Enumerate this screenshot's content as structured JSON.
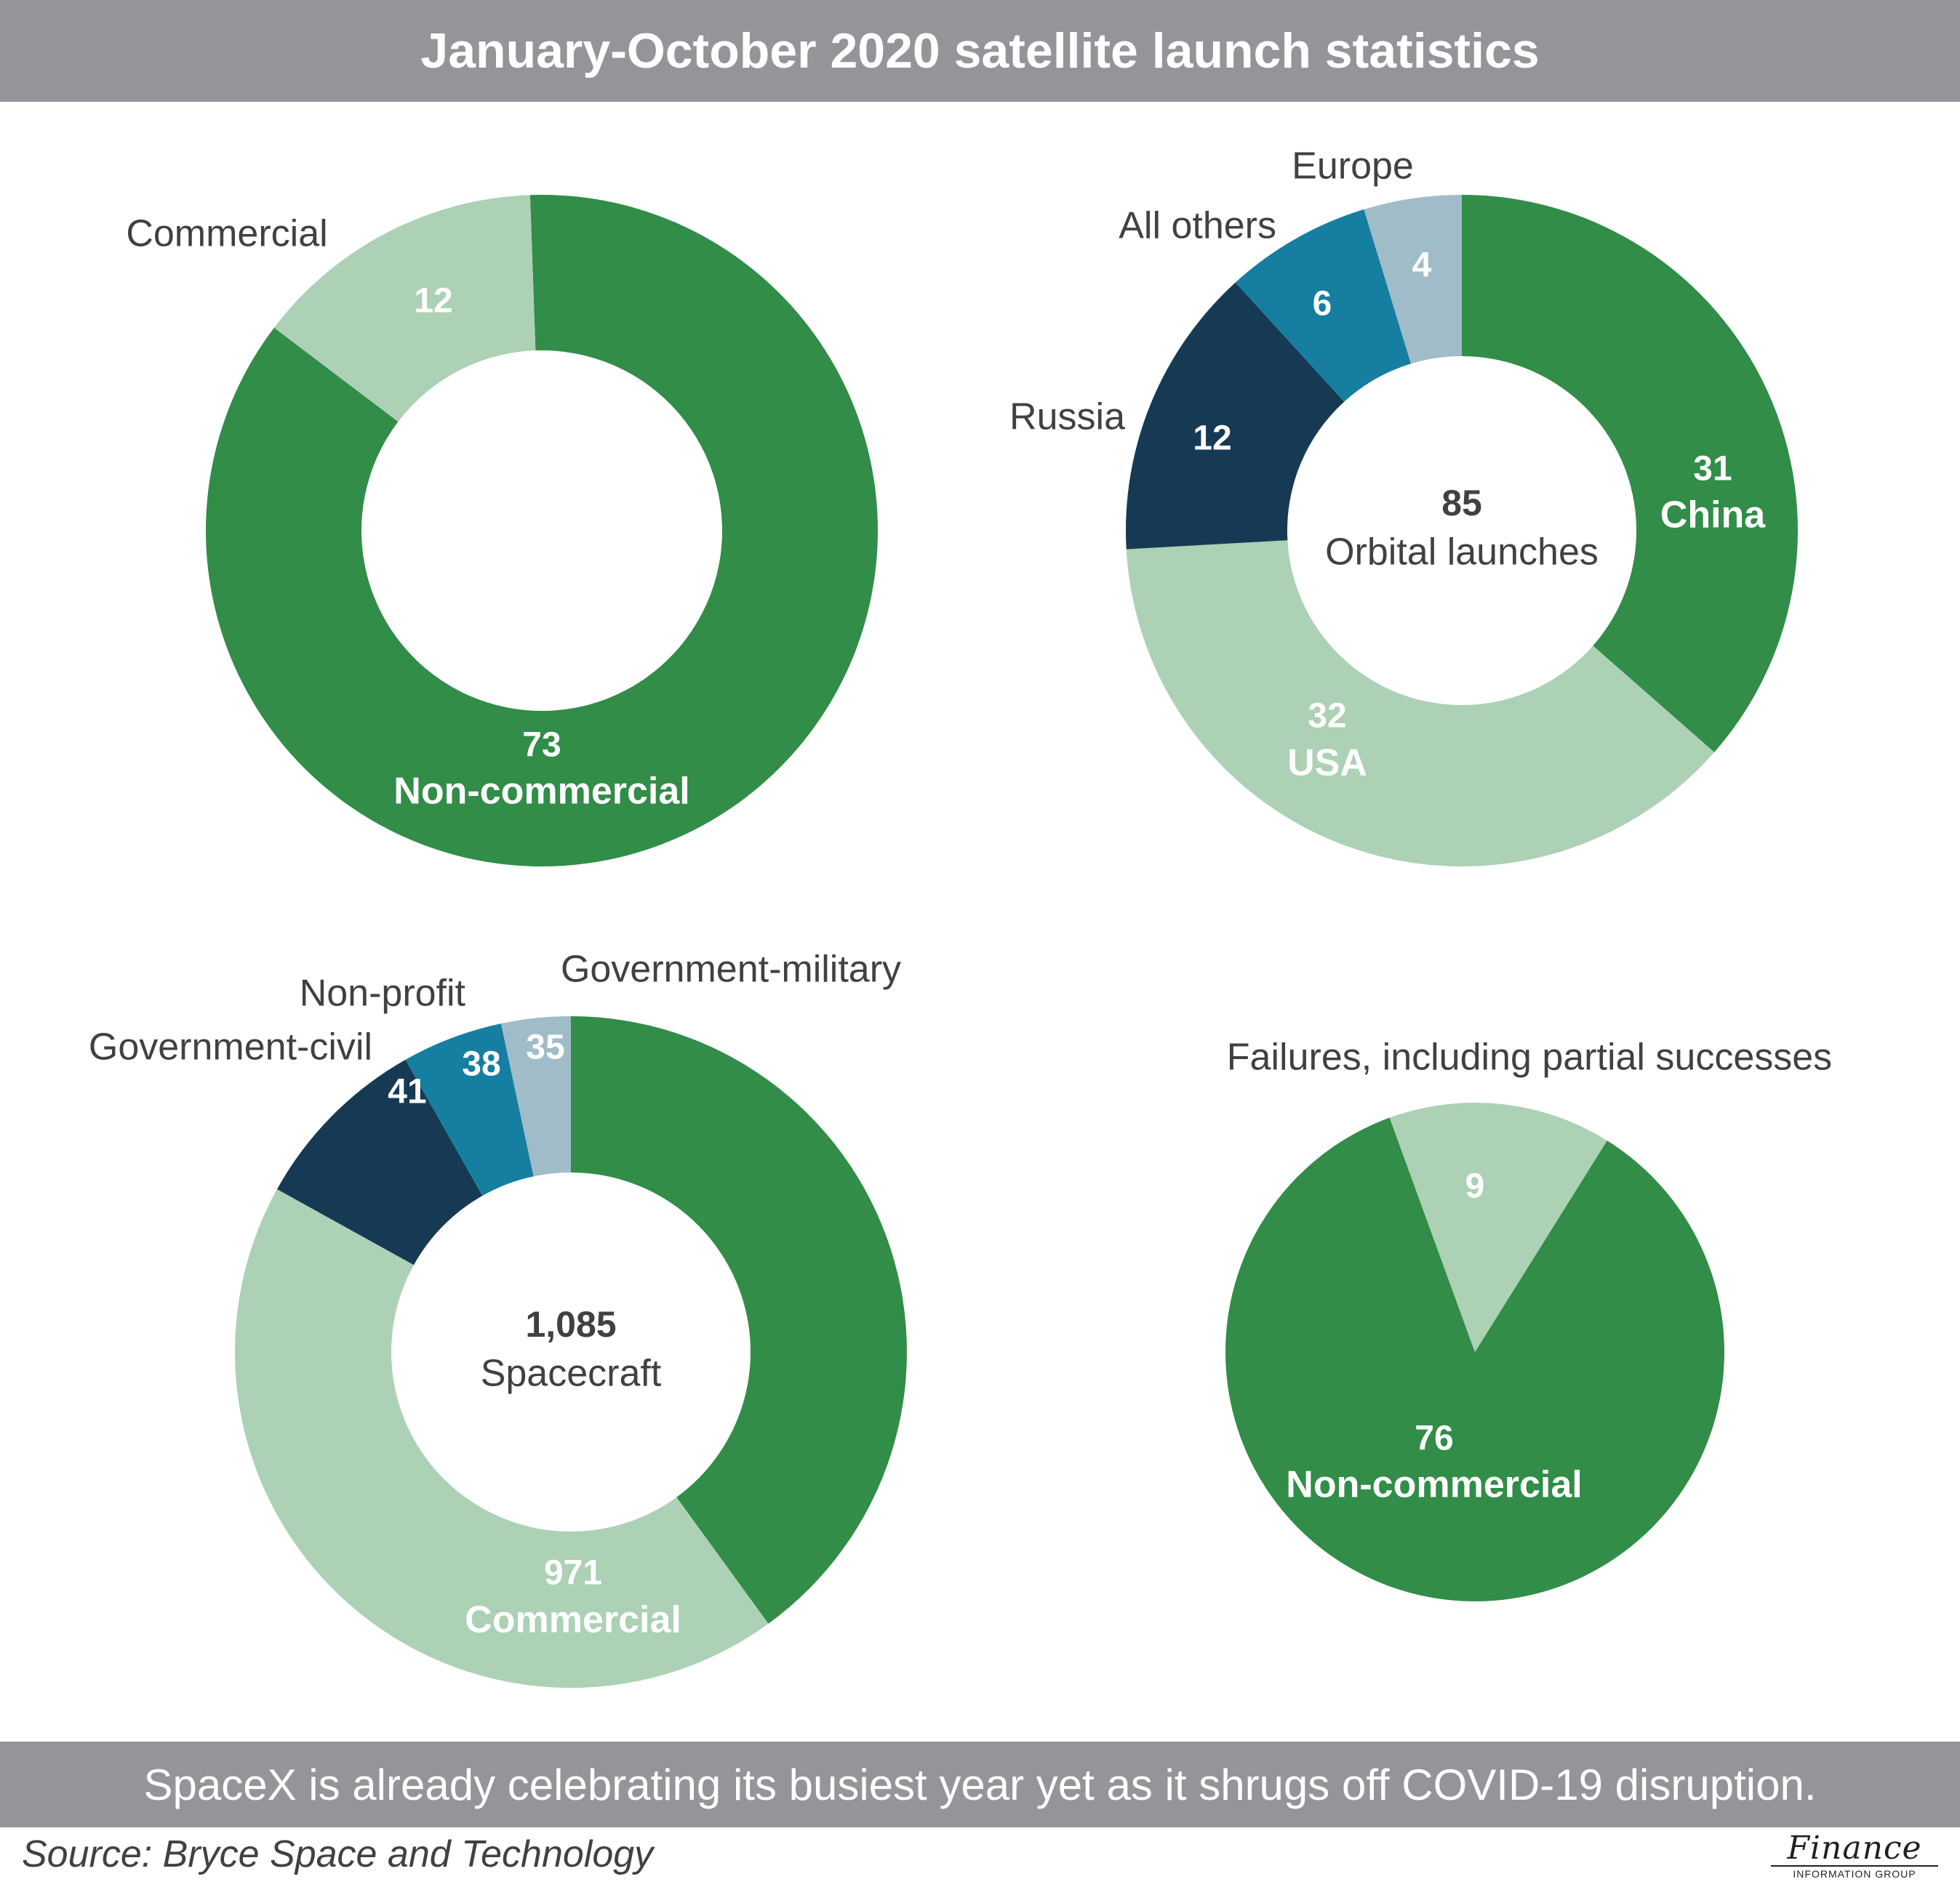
{
  "title": "January-October 2020 satellite launch statistics",
  "caption": "SpaceX is already celebrating its busiest year yet as it shrugs off COVID-19 disruption.",
  "source": "Source: Bryce Space and Technology",
  "logo": {
    "main": "Finance",
    "sub": "INFORMATION GROUP"
  },
  "colors": {
    "dark_green": "#318d47",
    "light_green": "#acd1b5",
    "navy": "#173a54",
    "teal": "#167ea1",
    "light_blue": "#a0bcc8",
    "label_gray": "#414042",
    "white": "#ffffff",
    "bar_gray": "#939598"
  },
  "chart_data": [
    {
      "type": "pie",
      "variant": "donut",
      "title": "",
      "center_value": "",
      "center_label": "",
      "slices": [
        {
          "category": "Non-commercial",
          "value": 73,
          "value_label": "73",
          "inside_label": "Non-commercial",
          "outside_label": "",
          "color": "#318d47"
        },
        {
          "category": "Commercial",
          "value": 12,
          "value_label": "12",
          "inside_label": "",
          "outside_label": "Commercial",
          "color": "#acd1b5"
        }
      ]
    },
    {
      "type": "pie",
      "variant": "donut",
      "title": "",
      "center_value": "85",
      "center_label": "Orbital launches",
      "slices": [
        {
          "category": "China",
          "value": 31,
          "value_label": "31",
          "inside_label": "China",
          "outside_label": "",
          "color": "#318d47"
        },
        {
          "category": "USA",
          "value": 32,
          "value_label": "32",
          "inside_label": "USA",
          "outside_label": "",
          "color": "#acd1b5"
        },
        {
          "category": "Russia",
          "value": 12,
          "value_label": "12",
          "inside_label": "",
          "outside_label": "Russia",
          "color": "#173a54"
        },
        {
          "category": "All others",
          "value": 6,
          "value_label": "6",
          "inside_label": "",
          "outside_label": "All others",
          "color": "#167ea1"
        },
        {
          "category": "Europe",
          "value": 4,
          "value_label": "4",
          "inside_label": "",
          "outside_label": "Europe",
          "color": "#a0bcc8"
        }
      ]
    },
    {
      "type": "pie",
      "variant": "donut",
      "title": "",
      "center_value": "1,085",
      "center_label": "Spacecraft",
      "slices": [
        {
          "category": "",
          "value": 0,
          "value_label": "",
          "inside_label": "",
          "outside_label": "",
          "color": "#318d47"
        },
        {
          "category": "Commercial",
          "value": 971,
          "value_label": "971",
          "inside_label": "Commercial",
          "outside_label": "",
          "color": "#acd1b5"
        },
        {
          "category": "Government-civil",
          "value": 41,
          "value_label": "41",
          "inside_label": "",
          "outside_label": "Government-civil",
          "color": "#173a54"
        },
        {
          "category": "Non-profit",
          "value": 38,
          "value_label": "38",
          "inside_label": "",
          "outside_label": "Non-profit",
          "color": "#167ea1"
        },
        {
          "category": "Government-military",
          "value": 35,
          "value_label": "35",
          "inside_label": "",
          "outside_label": "Government-military",
          "color": "#a0bcc8"
        }
      ]
    },
    {
      "type": "pie",
      "variant": "pie",
      "title": "",
      "center_value": "",
      "center_label": "",
      "slices": [
        {
          "category": "Non-commercial",
          "value": 76,
          "value_label": "76",
          "inside_label": "Non-commercial",
          "outside_label": "",
          "color": "#318d47"
        },
        {
          "category": "Failures, including partial successes",
          "value": 9,
          "value_label": "9",
          "inside_label": "",
          "outside_label": "Failures, including partial successes",
          "color": "#acd1b5"
        }
      ]
    }
  ]
}
